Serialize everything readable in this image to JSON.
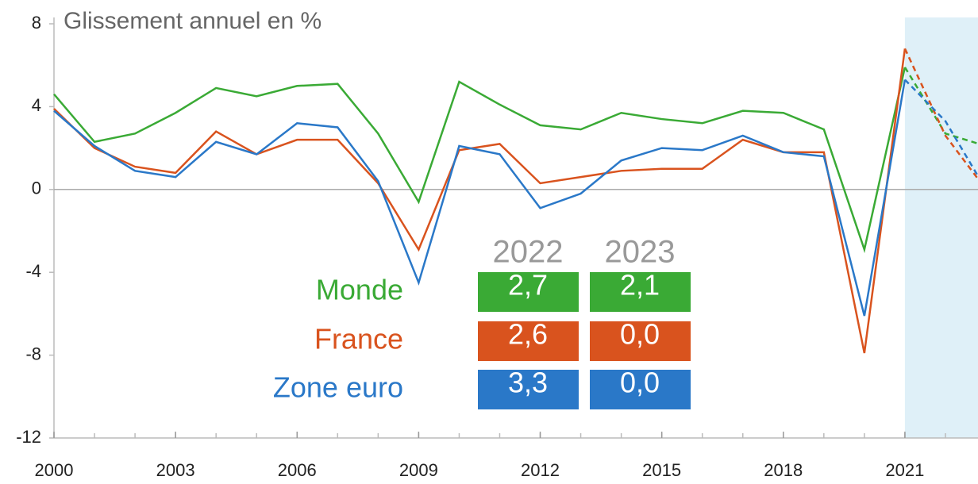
{
  "chart_data": {
    "type": "line",
    "y_label": "Glissement annuel en %",
    "x": [
      2000,
      2001,
      2002,
      2003,
      2004,
      2005,
      2006,
      2007,
      2008,
      2009,
      2010,
      2011,
      2012,
      2013,
      2014,
      2015,
      2016,
      2017,
      2018,
      2019,
      2020,
      2021,
      2022,
      2023
    ],
    "xlim": [
      2000,
      2023
    ],
    "xticks": [
      2000,
      2003,
      2006,
      2009,
      2012,
      2015,
      2018,
      2021
    ],
    "ylim": [
      -12,
      8
    ],
    "yticks": [
      -12,
      -8,
      -4,
      0,
      4,
      8
    ],
    "zero_line": true,
    "forecast_start": 2021,
    "series": [
      {
        "name": "Monde",
        "color": "#3aaa35",
        "values": [
          4.6,
          2.3,
          2.7,
          3.7,
          4.9,
          4.5,
          5.0,
          5.1,
          2.7,
          -0.6,
          5.2,
          4.1,
          3.1,
          2.9,
          3.7,
          3.4,
          3.2,
          3.8,
          3.7,
          2.9,
          -2.9,
          5.9,
          2.7,
          2.1
        ],
        "value_labels": [
          null,
          null,
          null,
          null,
          null,
          null,
          null,
          null,
          null,
          null,
          null,
          null,
          null,
          null,
          null,
          null,
          null,
          null,
          null,
          null,
          null,
          null,
          "2,7",
          "2,1"
        ]
      },
      {
        "name": "France",
        "color": "#d9531e",
        "values": [
          3.9,
          2.0,
          1.1,
          0.8,
          2.8,
          1.7,
          2.4,
          2.4,
          0.3,
          -2.9,
          1.9,
          2.2,
          0.3,
          0.6,
          0.9,
          1.0,
          1.0,
          2.4,
          1.8,
          1.8,
          -7.9,
          6.8,
          2.6,
          0.0
        ],
        "value_labels": [
          null,
          null,
          null,
          null,
          null,
          null,
          null,
          null,
          null,
          null,
          null,
          null,
          null,
          null,
          null,
          null,
          null,
          null,
          null,
          null,
          null,
          null,
          "2,6",
          "0,0"
        ]
      },
      {
        "name": "Zone euro",
        "color": "#2a78c8",
        "values": [
          3.8,
          2.1,
          0.9,
          0.6,
          2.3,
          1.7,
          3.2,
          3.0,
          0.4,
          -4.5,
          2.1,
          1.7,
          -0.9,
          -0.2,
          1.4,
          2.0,
          1.9,
          2.6,
          1.8,
          1.6,
          -6.1,
          5.3,
          3.3,
          0.0
        ],
        "value_labels": [
          null,
          null,
          null,
          null,
          null,
          null,
          null,
          null,
          null,
          null,
          null,
          null,
          null,
          null,
          null,
          null,
          null,
          null,
          null,
          null,
          null,
          null,
          "3,3",
          "0,0"
        ]
      }
    ]
  }
}
